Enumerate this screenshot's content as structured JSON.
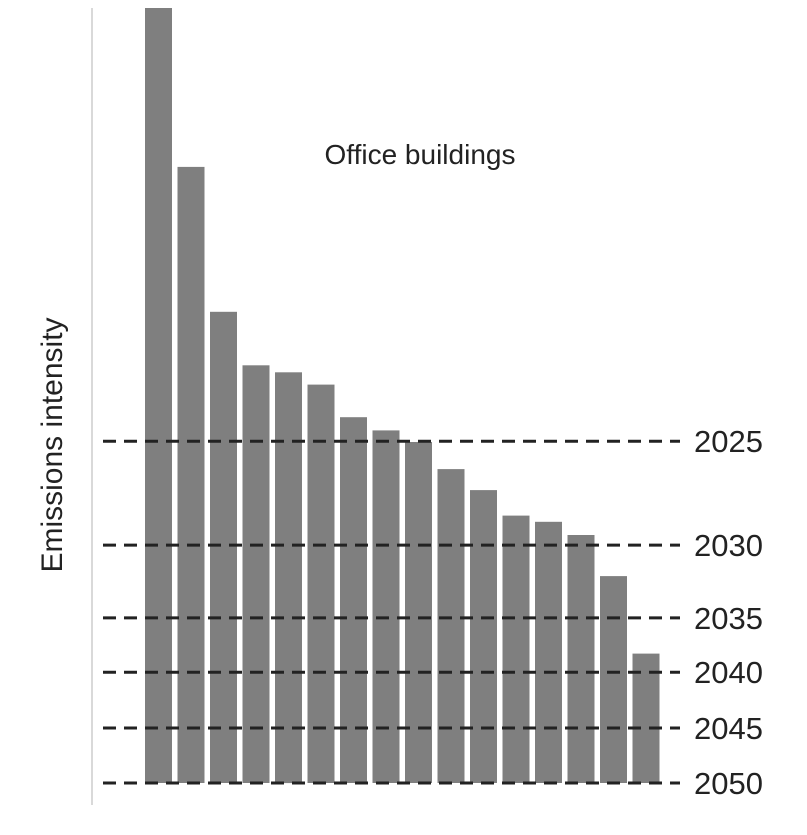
{
  "chart_data": {
    "type": "bar",
    "title": "Office buildings",
    "ylabel": "Emissions intensity",
    "xlabel": "",
    "ylim": [
      0,
      1000
    ],
    "values": [
      1000,
      795,
      608,
      539,
      530,
      514,
      472,
      455,
      440,
      405,
      378,
      345,
      337,
      320,
      267,
      167
    ],
    "thresholds": [
      {
        "label": "2025",
        "value": 441
      },
      {
        "label": "2030",
        "value": 307
      },
      {
        "label": "2035",
        "value": 213
      },
      {
        "label": "2040",
        "value": 143
      },
      {
        "label": "2045",
        "value": 71
      },
      {
        "label": "2050",
        "value": 0
      }
    ],
    "grid": false,
    "legend": "none",
    "colors": {
      "bar": "#7f7f7f",
      "threshold_line": "#222222",
      "axis": "#d9d9d9",
      "text": "#222222"
    }
  }
}
